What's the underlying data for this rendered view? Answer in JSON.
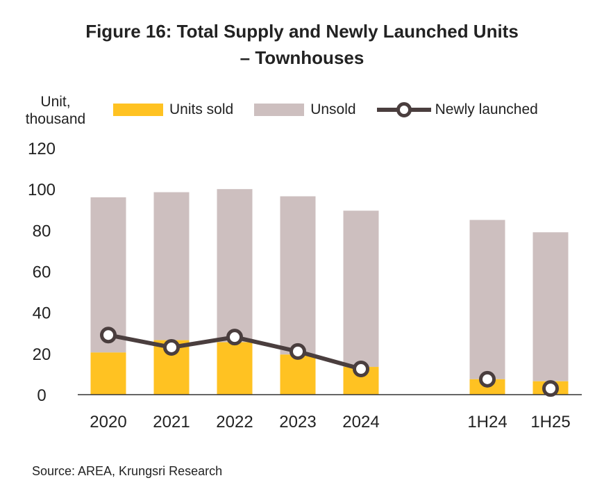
{
  "title_line1": "Figure 16: Total Supply and Newly Launched Units",
  "title_line2": "– Townhouses",
  "unit_label_line1": "Unit,",
  "unit_label_line2": "thousand",
  "source": "Source: AREA, Krungsri Research",
  "colors": {
    "sold": "#FFC222",
    "unsold": "#CDBFBF",
    "line": "#4A3E3E",
    "axis": "#333333"
  },
  "chart_data": {
    "type": "bar",
    "stacked": true,
    "categories": [
      "2020",
      "2021",
      "2022",
      "2023",
      "2024",
      "1H24",
      "1H25"
    ],
    "series": [
      {
        "name": "Units sold",
        "type": "bar",
        "values": [
          20.5,
          26.5,
          25.5,
          19.5,
          13.5,
          7.5,
          6.5
        ]
      },
      {
        "name": "Unsold",
        "type": "bar",
        "values": [
          75.5,
          72.0,
          74.5,
          77.0,
          76.0,
          77.5,
          72.5
        ]
      },
      {
        "name": "Newly launched",
        "type": "line",
        "values": [
          29.0,
          23.0,
          28.0,
          21.0,
          12.5,
          7.5,
          3.0
        ]
      }
    ],
    "ylim": [
      0,
      120
    ],
    "yticks": [
      0,
      20,
      40,
      60,
      80,
      100,
      120
    ],
    "ylabel": "Unit, thousand",
    "xlabel": "",
    "grid": false,
    "legend_position": "top"
  }
}
